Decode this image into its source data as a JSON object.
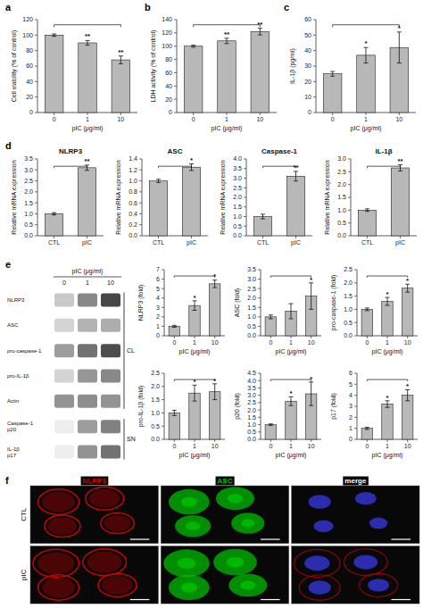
{
  "chart_data": [
    {
      "type": "bar",
      "annotations": [
        "a"
      ],
      "categories": [
        "0",
        "1",
        "10"
      ],
      "values": [
        100,
        90,
        68
      ],
      "errors": [
        1.5,
        3,
        5
      ],
      "sig": [
        null,
        "**",
        "**"
      ],
      "xlabel": "pIC (μg/ml)",
      "ylabel": "Cell viability (% of control)",
      "ylim": [
        0,
        120
      ],
      "yticks": [
        0,
        20,
        40,
        60,
        80,
        100,
        120
      ],
      "color": "#b8b8b8"
    },
    {
      "type": "bar",
      "annotations": [
        "b"
      ],
      "categories": [
        "0",
        "1",
        "10"
      ],
      "values": [
        100,
        108,
        122
      ],
      "errors": [
        1.5,
        4,
        5
      ],
      "sig": [
        null,
        "**",
        "**"
      ],
      "xlabel": "pIC (μg/ml)",
      "ylabel": "LDH activity (% of control)",
      "ylim": [
        0,
        140
      ],
      "yticks": [
        0,
        20,
        40,
        60,
        80,
        100,
        120,
        140
      ],
      "color": "#b8b8b8"
    },
    {
      "type": "bar",
      "annotations": [
        "c"
      ],
      "categories": [
        "0",
        "1",
        "10"
      ],
      "values": [
        25,
        37,
        42
      ],
      "errors": [
        1.5,
        5,
        10
      ],
      "sig": [
        null,
        "*",
        "*"
      ],
      "xlabel": "pIC (μg/ml)",
      "ylabel": "IL-1β (pg/ml)",
      "ylim": [
        0,
        60
      ],
      "yticks": [
        0,
        10,
        20,
        30,
        40,
        50,
        60
      ],
      "color": "#b8b8b8"
    },
    {
      "type": "bar",
      "annotations": [
        "d"
      ],
      "title": "NLRP3",
      "categories": [
        "CTL",
        "pIC"
      ],
      "values": [
        1.0,
        3.1
      ],
      "errors": [
        0.05,
        0.12
      ],
      "sig": [
        null,
        "**"
      ],
      "ylabel": "Relative mRNA expression",
      "ylim": [
        0,
        3.5
      ],
      "yticks": [
        {
          "value": 0,
          "label": "0.0"
        },
        0.5,
        {
          "value": 1.0,
          "label": "1.0"
        },
        1.5,
        {
          "value": 2.0,
          "label": "2.0"
        },
        2.5,
        {
          "value": 3.0,
          "label": "3.0"
        },
        3.5
      ],
      "color": "#b8b8b8"
    },
    {
      "type": "bar",
      "title": "ASC",
      "categories": [
        "CTL",
        "pIC"
      ],
      "values": [
        1.0,
        1.25
      ],
      "errors": [
        0.03,
        0.06
      ],
      "sig": [
        null,
        "*"
      ],
      "ylabel": "Relative mRNA expression",
      "ylim": [
        0,
        1.4
      ],
      "yticks": [
        {
          "value": 0,
          "label": "0.0"
        },
        0.2,
        0.4,
        0.6,
        0.8,
        {
          "value": 1.0,
          "label": "1.0"
        },
        1.2,
        1.4
      ],
      "color": "#b8b8b8"
    },
    {
      "type": "bar",
      "title": "Caspase-1",
      "categories": [
        "CTL",
        "pIC"
      ],
      "values": [
        1.0,
        3.1
      ],
      "errors": [
        0.12,
        0.25
      ],
      "sig": [
        null,
        "**"
      ],
      "ylabel": "Relative mRNA expression",
      "ylim": [
        0,
        4.0
      ],
      "yticks": [
        {
          "value": 0,
          "label": "0.0"
        },
        0.5,
        {
          "value": 1.0,
          "label": "1.0"
        },
        1.5,
        {
          "value": 2.0,
          "label": "2.0"
        },
        2.5,
        {
          "value": 3.0,
          "label": "3.0"
        },
        3.5,
        {
          "value": 4.0,
          "label": "4.0"
        }
      ],
      "color": "#b8b8b8"
    },
    {
      "type": "bar",
      "title": "IL-1β",
      "categories": [
        "CTL",
        "pIC"
      ],
      "values": [
        1.0,
        2.65
      ],
      "errors": [
        0.05,
        0.12
      ],
      "sig": [
        null,
        "**"
      ],
      "ylabel": "Relative mRNA expression",
      "ylim": [
        0,
        3.0
      ],
      "yticks": [
        {
          "value": 0,
          "label": "0.0"
        },
        0.5,
        {
          "value": 1.0,
          "label": "1.0"
        },
        1.5,
        {
          "value": 2.0,
          "label": "2.0"
        },
        2.5,
        {
          "value": 3.0,
          "label": "3.0"
        }
      ],
      "color": "#b8b8b8"
    },
    {
      "type": "bar",
      "categories": [
        "0",
        "1",
        "10"
      ],
      "values": [
        1.0,
        3.2,
        5.5
      ],
      "errors": [
        0.1,
        0.5,
        0.4
      ],
      "sig": [
        null,
        "*",
        "*"
      ],
      "xlabel": "pIC (μg/ml)",
      "ylabel": "NLRP3 (fold)",
      "ylim": [
        0,
        7
      ],
      "yticks": [
        0,
        1,
        2,
        3,
        4,
        5,
        6,
        7
      ],
      "color": "#b8b8b8"
    },
    {
      "type": "bar",
      "categories": [
        "0",
        "1",
        "10"
      ],
      "values": [
        1.0,
        1.3,
        2.1
      ],
      "errors": [
        0.1,
        0.4,
        0.7
      ],
      "sig": [
        null,
        null,
        "*"
      ],
      "xlabel": "pIC (μg/ml)",
      "ylabel": "ASC (fold)",
      "ylim": [
        0,
        3.5
      ],
      "yticks": [
        {
          "value": 0,
          "label": "0.0"
        },
        0.5,
        {
          "value": 1.0,
          "label": "1.0"
        },
        1.5,
        {
          "value": 2.0,
          "label": "2.0"
        },
        2.5,
        {
          "value": 3.0,
          "label": "3.0"
        },
        3.5
      ],
      "color": "#b8b8b8"
    },
    {
      "type": "bar",
      "categories": [
        "0",
        "1",
        "10"
      ],
      "values": [
        1.0,
        1.3,
        1.8
      ],
      "errors": [
        0.05,
        0.15,
        0.15
      ],
      "sig": [
        null,
        "*",
        "*"
      ],
      "xlabel": "pIC (μg/ml)",
      "ylabel": "pro-caspase-1 (fold)",
      "ylim": [
        0,
        2.5
      ],
      "yticks": [
        {
          "value": 0,
          "label": "0.0"
        },
        0.5,
        {
          "value": 1.0,
          "label": "1.0"
        },
        1.5,
        {
          "value": 2.0,
          "label": "2.0"
        },
        2.5
      ],
      "color": "#b8b8b8"
    },
    {
      "type": "bar",
      "categories": [
        "0",
        "1",
        "10"
      ],
      "values": [
        1.0,
        1.75,
        1.8
      ],
      "errors": [
        0.1,
        0.3,
        0.3
      ],
      "sig": [
        null,
        "*",
        "*"
      ],
      "xlabel": "pIC (μg/ml)",
      "ylabel": "pro-IL-1β (fold)",
      "ylim": [
        0,
        2.5
      ],
      "yticks": [
        {
          "value": 0,
          "label": "0.0"
        },
        0.5,
        {
          "value": 1.0,
          "label": "1.0"
        },
        1.5,
        {
          "value": 2.0,
          "label": "2.0"
        },
        2.5
      ],
      "color": "#b8b8b8"
    },
    {
      "type": "bar",
      "categories": [
        "0",
        "1",
        "10"
      ],
      "values": [
        1.0,
        2.6,
        3.1
      ],
      "errors": [
        0.05,
        0.3,
        0.8
      ],
      "sig": [
        null,
        "*",
        "*"
      ],
      "xlabel": "pIC (μg/ml)",
      "ylabel": "p20 (fold)",
      "ylim": [
        0,
        4.5
      ],
      "yticks": [
        {
          "value": 0,
          "label": "0.0"
        },
        0.5,
        {
          "value": 1.0,
          "label": "1.0"
        },
        1.5,
        {
          "value": 2.0,
          "label": "2.0"
        },
        2.5,
        {
          "value": 3.0,
          "label": "3.0"
        },
        3.5,
        {
          "value": 4.0,
          "label": "4.0"
        },
        4.5
      ],
      "color": "#b8b8b8"
    },
    {
      "type": "bar",
      "categories": [
        "0",
        "1",
        "10"
      ],
      "values": [
        1.0,
        3.2,
        4.0
      ],
      "errors": [
        0.1,
        0.3,
        0.5
      ],
      "sig": [
        null,
        "*",
        "*"
      ],
      "xlabel": "pIC (μg/ml)",
      "ylabel": "p17 (fold)",
      "ylim": [
        0,
        6
      ],
      "yticks": [
        0,
        1,
        2,
        3,
        4,
        5,
        6
      ],
      "color": "#b8b8b8"
    },
    {
      "type": "heatmap",
      "annotations": [
        "e"
      ],
      "xlabel": "pIC (μg/ml)",
      "columns": [
        "0",
        "1",
        "10"
      ],
      "rows": [
        "NLRP3",
        "ASC",
        "pro-caspase-1",
        "pro-IL-1β",
        "Actin",
        "Caspase-1\np20",
        "IL-1β\np17"
      ],
      "cells": [
        [
          0.25,
          0.55,
          0.85
        ],
        [
          0.2,
          0.35,
          0.38
        ],
        [
          0.45,
          0.65,
          0.82
        ],
        [
          0.2,
          0.48,
          0.55
        ],
        [
          0.5,
          0.52,
          0.5
        ],
        [
          0.08,
          0.45,
          0.58
        ],
        [
          0.08,
          0.5,
          0.65
        ]
      ],
      "clim": [
        0,
        1
      ],
      "groups": [
        {
          "label": "CL",
          "first": "NLRP3",
          "last": "Actin"
        },
        {
          "label": "SN",
          "first": "Caspase-1\np20",
          "last": "IL-1β\np17"
        }
      ]
    },
    {
      "type": "image",
      "annotations": [
        "f"
      ],
      "columns": [
        "NLRP3",
        "ASC",
        "merge"
      ],
      "rows": [
        "CTL",
        "pIC"
      ],
      "colors": [
        "#cc0000",
        "#00bb00",
        "#3333cc"
      ]
    }
  ]
}
